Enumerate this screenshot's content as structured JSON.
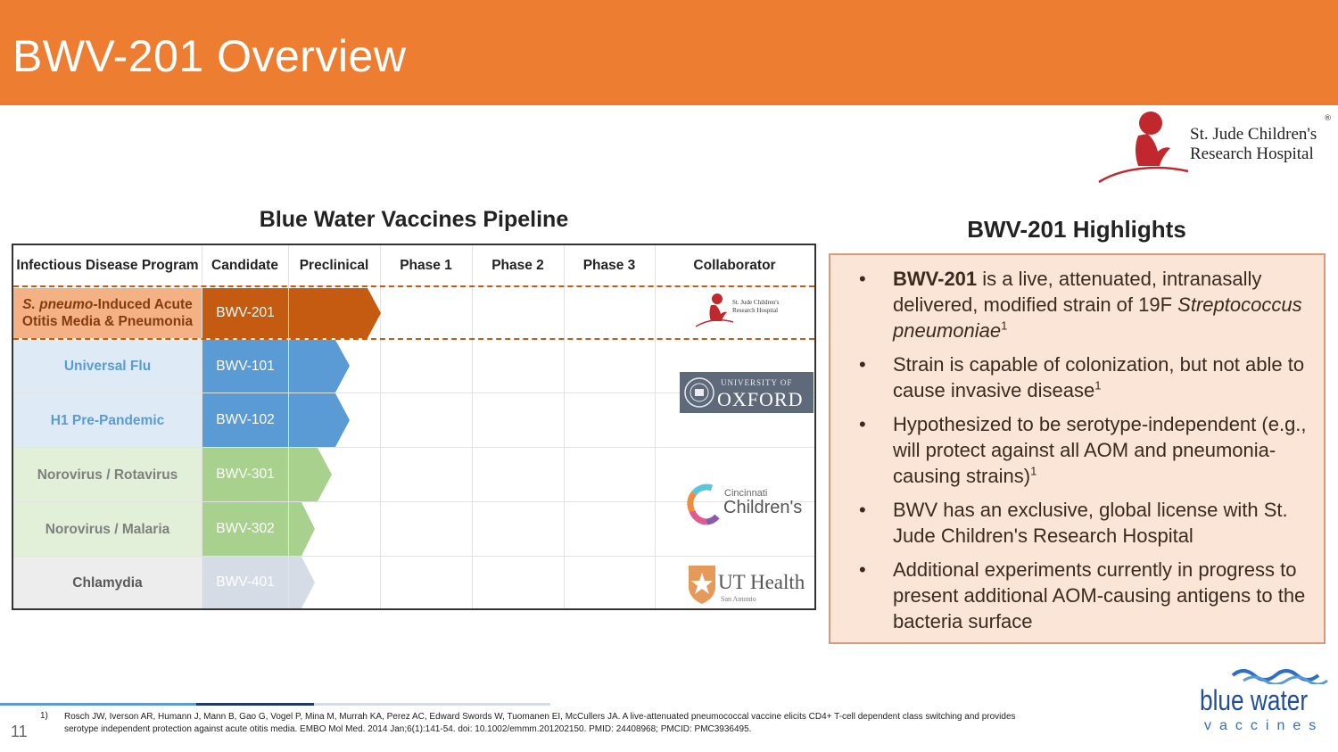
{
  "header": {
    "title": "BWV-201 Overview"
  },
  "stjude_logo": {
    "line1": "St. Jude Children's",
    "line2": "Research Hospital",
    "mark": "®"
  },
  "pipeline": {
    "title": "Blue Water Vaccines Pipeline",
    "columns": [
      "Infectious Disease Program",
      "Candidate",
      "Preclinical",
      "Phase 1",
      "Phase 2",
      "Phase 3",
      "Collaborator"
    ],
    "rows": [
      {
        "program_italic": "S. pneumo",
        "program_rest": "-Induced Acute",
        "program_line2": "Otitis Media & Pneumonia",
        "candidate": "BWV-201",
        "stage": "Preclinical"
      },
      {
        "program": "Universal Flu",
        "candidate": "BWV-101",
        "stage": "Preclinical"
      },
      {
        "program": "H1 Pre-Pandemic",
        "candidate": "BWV-102",
        "stage": "Preclinical"
      },
      {
        "program": "Norovirus / Rotavirus",
        "candidate": "BWV-301",
        "stage": "Preclinical"
      },
      {
        "program": "Norovirus / Malaria",
        "candidate": "BWV-302",
        "stage": "Preclinical"
      },
      {
        "program": "Chlamydia",
        "candidate": "BWV-401",
        "stage": "Preclinical"
      }
    ],
    "collaborators": {
      "stjude_small": {
        "line1": "St. Jude Children's",
        "line2": "Research Hospital"
      },
      "oxford": {
        "small": "UNIVERSITY OF",
        "big": "OXFORD"
      },
      "cincinnati": {
        "small": "Cincinnati",
        "big": "Children's"
      },
      "ut_health": {
        "big": "UT Health",
        "small": "San Antonio"
      }
    }
  },
  "highlights": {
    "title": "BWV-201 Highlights",
    "bullet": "•",
    "b1": {
      "bold": "BWV-201",
      "text": " is a live, attenuated, intranasally delivered, modified strain of 19F ",
      "italic": "Streptococcus pneumoniae",
      "sup": "1"
    },
    "b2": {
      "text": "Strain is capable of colonization, but not able to cause invasive disease",
      "sup": "1"
    },
    "b3": {
      "text": "Hypothesized to be serotype-independent (e.g., will protect against all AOM and pneumonia-causing strains)",
      "sup": "1"
    },
    "b4": {
      "text": "BWV has an exclusive, global license with St. Jude Children's Research Hospital"
    },
    "b5": {
      "text": "Additional experiments currently in progress to present additional AOM-causing antigens to the bacteria surface"
    }
  },
  "bw_logo": {
    "name": "blue water",
    "sub": "vaccines"
  },
  "footer": {
    "slide_number": "11",
    "ref_number": "1)",
    "reference": "Rosch JW, Iverson AR, Humann J, Mann B, Gao G, Vogel P, Mina M, Murrah KA, Perez AC, Edward Swords W, Tuomanen EI, McCullers JA. A live-attenuated pneumococcal vaccine elicits CD4+ T-cell dependent class switching and provides serotype independent protection against acute otitis media. EMBO Mol Med. 2014 Jan;6(1):141-54. doi: 10.1002/emmm.201202150. PMID: 24408968; PMCID: PMC3936495."
  },
  "colors": {
    "title_bar": "#ED7D31",
    "row_sp_program": "#F4B183",
    "row_sp_dark": "#C55A11",
    "row_flu_program": "#DEEBF7",
    "row_flu_dark": "#5B9BD5",
    "row_noro_program": "#E2F0D9",
    "row_noro_dark": "#A9D18E",
    "row_chl_program": "#EDEDED",
    "row_chl_dark": "#D6DCE5",
    "highlight_box": "#FBE5D6"
  }
}
